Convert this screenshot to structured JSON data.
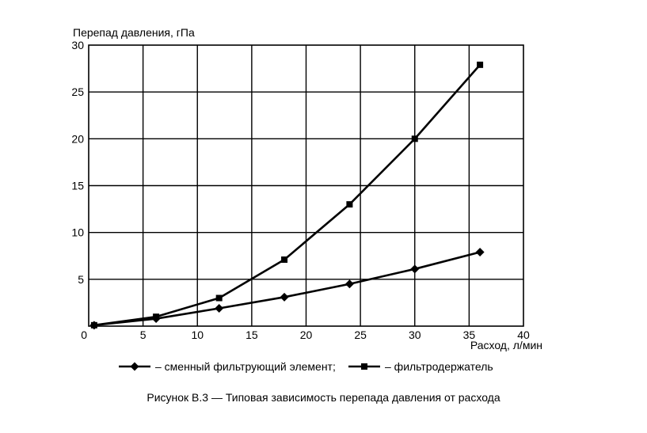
{
  "chart_data": {
    "type": "line",
    "ylabel": "Перепад давления, гПа",
    "xlabel": "Расход, л/мин",
    "xlim": [
      0,
      40
    ],
    "ylim": [
      0,
      30
    ],
    "xticks": [
      0,
      5,
      10,
      15,
      20,
      25,
      30,
      35,
      40
    ],
    "yticks": [
      5,
      10,
      15,
      20,
      25,
      30
    ],
    "grid": true,
    "legend_position": "bottom",
    "series": [
      {
        "name": "– сменный фильтрующий элемент;",
        "marker": "diamond",
        "color": "#000000",
        "x": [
          0.5,
          6.2,
          12,
          18,
          24,
          30,
          36
        ],
        "y": [
          0.1,
          0.8,
          1.9,
          3.1,
          4.5,
          6.1,
          7.9
        ]
      },
      {
        "name": "– фильтродержатель",
        "marker": "square",
        "color": "#000000",
        "x": [
          0.5,
          6.2,
          12,
          18,
          24,
          30,
          36
        ],
        "y": [
          0.1,
          1.0,
          3.0,
          7.1,
          13.0,
          20.0,
          27.9
        ]
      }
    ]
  },
  "caption": "Рисунок В.3 — Типовая зависимость перепада давления от расхода"
}
